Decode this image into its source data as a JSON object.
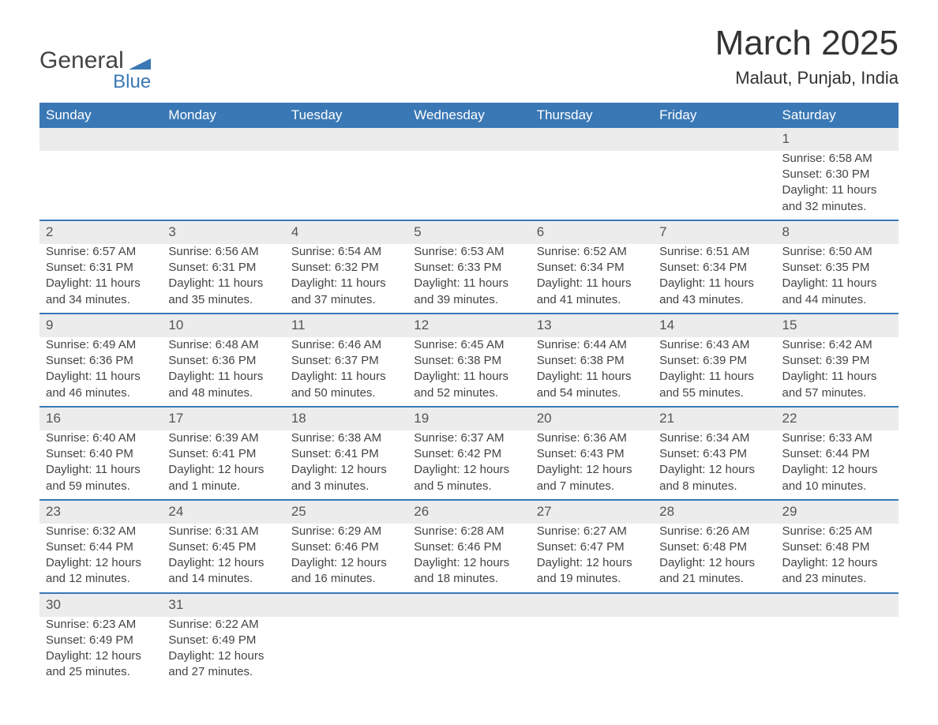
{
  "logo": {
    "line1": "General",
    "line2": "Blue",
    "shape_color": "#3a78b5"
  },
  "title": "March 2025",
  "location": "Malaut, Punjab, India",
  "colors": {
    "header_bg": "#3a78b5",
    "header_text": "#ffffff",
    "daynum_bg": "#ececec",
    "row_divider": "#3a78b5",
    "body_text": "#444444",
    "background": "#ffffff"
  },
  "fonts": {
    "title_size_pt": 33,
    "location_size_pt": 17,
    "header_size_pt": 13,
    "cell_size_pt": 11
  },
  "columns": [
    "Sunday",
    "Monday",
    "Tuesday",
    "Wednesday",
    "Thursday",
    "Friday",
    "Saturday"
  ],
  "weeks": [
    [
      null,
      null,
      null,
      null,
      null,
      null,
      {
        "d": "1",
        "sr": "6:58 AM",
        "ss": "6:30 PM",
        "dl": "11 hours and 32 minutes."
      }
    ],
    [
      {
        "d": "2",
        "sr": "6:57 AM",
        "ss": "6:31 PM",
        "dl": "11 hours and 34 minutes."
      },
      {
        "d": "3",
        "sr": "6:56 AM",
        "ss": "6:31 PM",
        "dl": "11 hours and 35 minutes."
      },
      {
        "d": "4",
        "sr": "6:54 AM",
        "ss": "6:32 PM",
        "dl": "11 hours and 37 minutes."
      },
      {
        "d": "5",
        "sr": "6:53 AM",
        "ss": "6:33 PM",
        "dl": "11 hours and 39 minutes."
      },
      {
        "d": "6",
        "sr": "6:52 AM",
        "ss": "6:34 PM",
        "dl": "11 hours and 41 minutes."
      },
      {
        "d": "7",
        "sr": "6:51 AM",
        "ss": "6:34 PM",
        "dl": "11 hours and 43 minutes."
      },
      {
        "d": "8",
        "sr": "6:50 AM",
        "ss": "6:35 PM",
        "dl": "11 hours and 44 minutes."
      }
    ],
    [
      {
        "d": "9",
        "sr": "6:49 AM",
        "ss": "6:36 PM",
        "dl": "11 hours and 46 minutes."
      },
      {
        "d": "10",
        "sr": "6:48 AM",
        "ss": "6:36 PM",
        "dl": "11 hours and 48 minutes."
      },
      {
        "d": "11",
        "sr": "6:46 AM",
        "ss": "6:37 PM",
        "dl": "11 hours and 50 minutes."
      },
      {
        "d": "12",
        "sr": "6:45 AM",
        "ss": "6:38 PM",
        "dl": "11 hours and 52 minutes."
      },
      {
        "d": "13",
        "sr": "6:44 AM",
        "ss": "6:38 PM",
        "dl": "11 hours and 54 minutes."
      },
      {
        "d": "14",
        "sr": "6:43 AM",
        "ss": "6:39 PM",
        "dl": "11 hours and 55 minutes."
      },
      {
        "d": "15",
        "sr": "6:42 AM",
        "ss": "6:39 PM",
        "dl": "11 hours and 57 minutes."
      }
    ],
    [
      {
        "d": "16",
        "sr": "6:40 AM",
        "ss": "6:40 PM",
        "dl": "11 hours and 59 minutes."
      },
      {
        "d": "17",
        "sr": "6:39 AM",
        "ss": "6:41 PM",
        "dl": "12 hours and 1 minute."
      },
      {
        "d": "18",
        "sr": "6:38 AM",
        "ss": "6:41 PM",
        "dl": "12 hours and 3 minutes."
      },
      {
        "d": "19",
        "sr": "6:37 AM",
        "ss": "6:42 PM",
        "dl": "12 hours and 5 minutes."
      },
      {
        "d": "20",
        "sr": "6:36 AM",
        "ss": "6:43 PM",
        "dl": "12 hours and 7 minutes."
      },
      {
        "d": "21",
        "sr": "6:34 AM",
        "ss": "6:43 PM",
        "dl": "12 hours and 8 minutes."
      },
      {
        "d": "22",
        "sr": "6:33 AM",
        "ss": "6:44 PM",
        "dl": "12 hours and 10 minutes."
      }
    ],
    [
      {
        "d": "23",
        "sr": "6:32 AM",
        "ss": "6:44 PM",
        "dl": "12 hours and 12 minutes."
      },
      {
        "d": "24",
        "sr": "6:31 AM",
        "ss": "6:45 PM",
        "dl": "12 hours and 14 minutes."
      },
      {
        "d": "25",
        "sr": "6:29 AM",
        "ss": "6:46 PM",
        "dl": "12 hours and 16 minutes."
      },
      {
        "d": "26",
        "sr": "6:28 AM",
        "ss": "6:46 PM",
        "dl": "12 hours and 18 minutes."
      },
      {
        "d": "27",
        "sr": "6:27 AM",
        "ss": "6:47 PM",
        "dl": "12 hours and 19 minutes."
      },
      {
        "d": "28",
        "sr": "6:26 AM",
        "ss": "6:48 PM",
        "dl": "12 hours and 21 minutes."
      },
      {
        "d": "29",
        "sr": "6:25 AM",
        "ss": "6:48 PM",
        "dl": "12 hours and 23 minutes."
      }
    ],
    [
      {
        "d": "30",
        "sr": "6:23 AM",
        "ss": "6:49 PM",
        "dl": "12 hours and 25 minutes."
      },
      {
        "d": "31",
        "sr": "6:22 AM",
        "ss": "6:49 PM",
        "dl": "12 hours and 27 minutes."
      },
      null,
      null,
      null,
      null,
      null
    ]
  ],
  "labels": {
    "sunrise": "Sunrise: ",
    "sunset": "Sunset: ",
    "daylight": "Daylight: "
  }
}
